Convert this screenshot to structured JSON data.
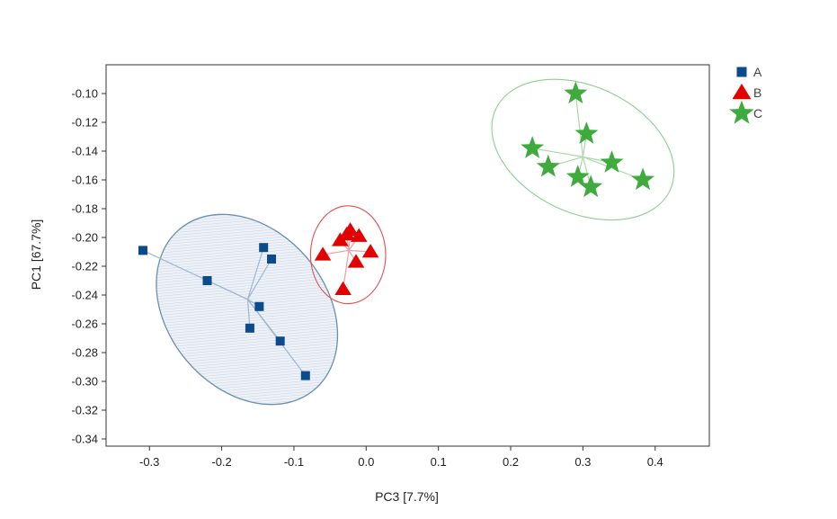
{
  "chart_data": {
    "type": "scatter",
    "title": "",
    "xlabel": "PC3 [7.7%]",
    "ylabel": "PC1 [67.7%]",
    "xlim": [
      -0.36,
      0.475
    ],
    "ylim": [
      -0.345,
      -0.08
    ],
    "x_ticks": [
      -0.3,
      -0.2,
      -0.1,
      0.0,
      0.1,
      0.2,
      0.3,
      0.4
    ],
    "x_tick_labels": [
      "-0.3",
      "-0.2",
      "-0.1",
      "0.0",
      "0.1",
      "0.2",
      "0.3",
      "0.4"
    ],
    "y_ticks": [
      -0.1,
      -0.12,
      -0.14,
      -0.16,
      -0.18,
      -0.2,
      -0.22,
      -0.24,
      -0.26,
      -0.28,
      -0.3,
      -0.32,
      -0.34
    ],
    "y_tick_labels": [
      "-0.10",
      "-0.12",
      "-0.14",
      "-0.16",
      "-0.18",
      "-0.20",
      "-0.22",
      "-0.24",
      "-0.26",
      "-0.28",
      "-0.30",
      "-0.32",
      "-0.34"
    ],
    "grid": false,
    "legend_position": "top-right",
    "series": [
      {
        "name": "A",
        "marker": "square",
        "color": "#0b4a8b",
        "ellipse_color": "#6a8fb0",
        "ellipse_fill": "#dfe7f1",
        "points": [
          [
            -0.309,
            -0.209
          ],
          [
            -0.22,
            -0.23
          ],
          [
            -0.142,
            -0.207
          ],
          [
            -0.131,
            -0.215
          ],
          [
            -0.148,
            -0.248
          ],
          [
            -0.161,
            -0.263
          ],
          [
            -0.119,
            -0.272
          ],
          [
            -0.084,
            -0.296
          ]
        ],
        "centroid": [
          -0.164,
          -0.243
        ]
      },
      {
        "name": "B",
        "marker": "triangle",
        "color": "#e30000",
        "ellipse_color": "#e05050",
        "ellipse_fill": "none",
        "points": [
          [
            -0.022,
            -0.195
          ],
          [
            -0.027,
            -0.198
          ],
          [
            -0.036,
            -0.202
          ],
          [
            -0.01,
            -0.199
          ],
          [
            0.006,
            -0.21
          ],
          [
            -0.06,
            -0.212
          ],
          [
            -0.014,
            -0.217
          ],
          [
            -0.032,
            -0.236
          ]
        ],
        "centroid": [
          -0.024,
          -0.209
        ]
      },
      {
        "name": "C",
        "marker": "star",
        "color": "#3fab3f",
        "ellipse_color": "#8bd08b",
        "ellipse_fill": "none",
        "points": [
          [
            0.29,
            -0.1
          ],
          [
            0.305,
            -0.128
          ],
          [
            0.23,
            -0.138
          ],
          [
            0.252,
            -0.151
          ],
          [
            0.34,
            -0.148
          ],
          [
            0.383,
            -0.16
          ],
          [
            0.293,
            -0.158
          ],
          [
            0.311,
            -0.165
          ]
        ],
        "centroid": [
          0.3,
          -0.144
        ]
      }
    ]
  }
}
